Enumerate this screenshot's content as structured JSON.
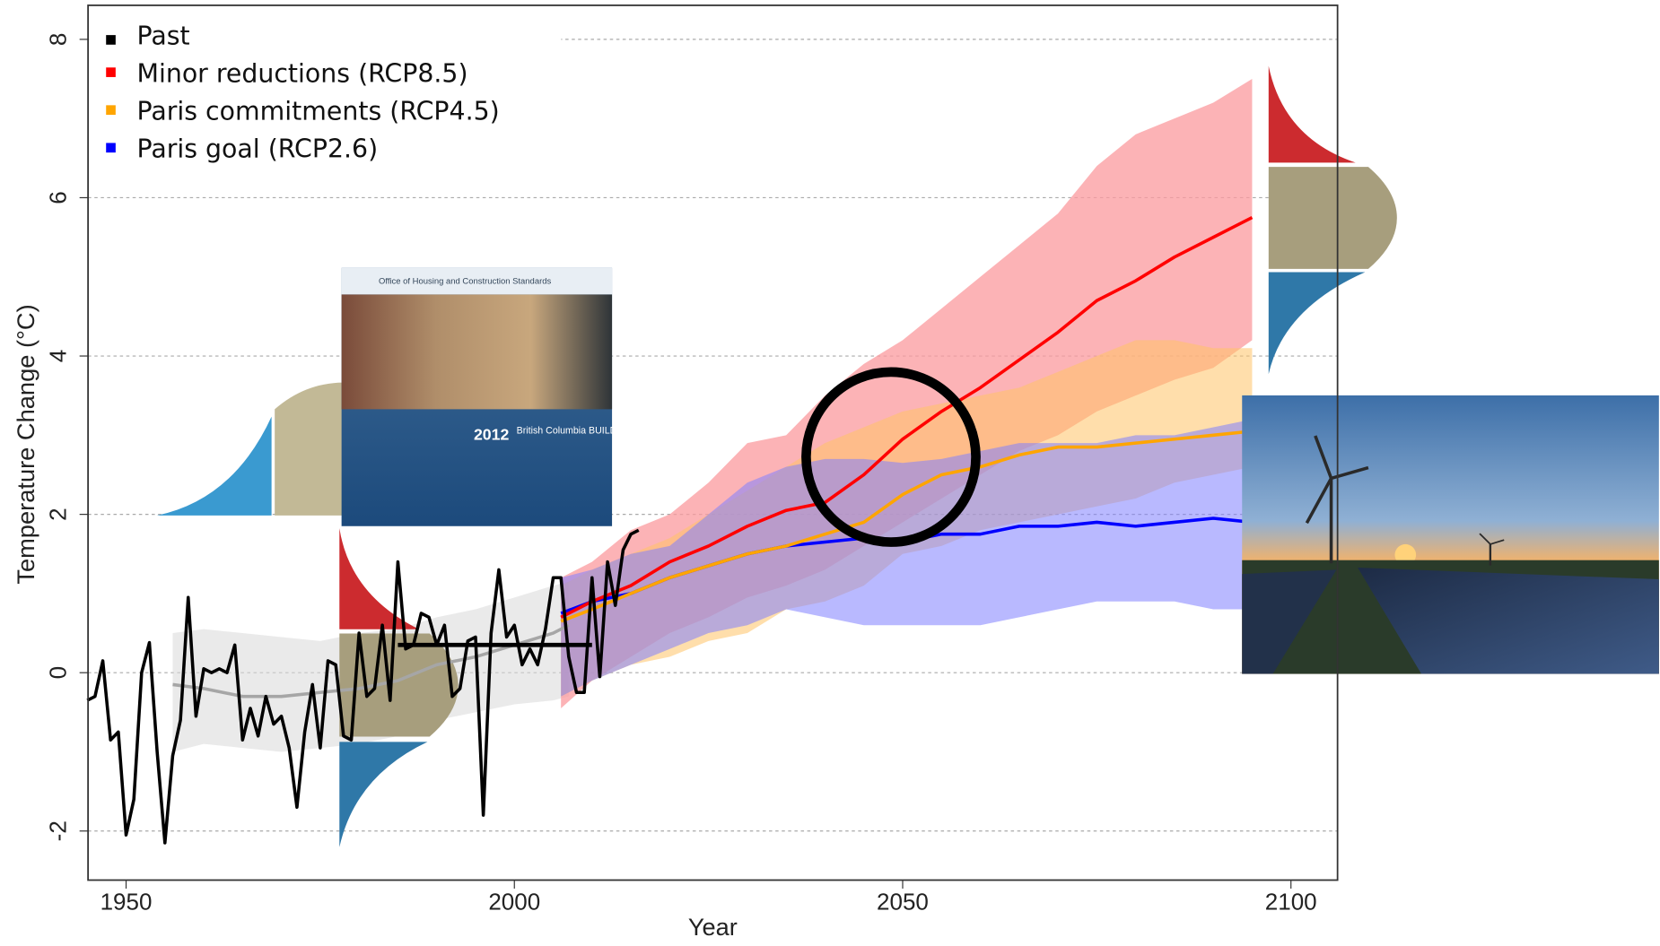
{
  "chart_data": {
    "type": "line",
    "x_label": "Year",
    "y_label": "Temperature Change (°C)",
    "xlim": [
      1945.1,
      2106
    ],
    "ylim": [
      -2.62,
      8.43
    ],
    "xticks": [
      1950,
      2000,
      2050,
      2100
    ],
    "yticks": [
      -2,
      0,
      2,
      4,
      6,
      8
    ],
    "grid": true,
    "legend": "top-left",
    "series": [
      {
        "name": "Past",
        "color": "#000000",
        "x": [
          1945,
          1946,
          1947,
          1948,
          1949,
          1950,
          1951,
          1952,
          1953,
          1954,
          1955,
          1956,
          1957,
          1958,
          1959,
          1960,
          1961,
          1962,
          1963,
          1964,
          1965,
          1966,
          1967,
          1968,
          1969,
          1970,
          1971,
          1972,
          1973,
          1974,
          1975,
          1976,
          1977,
          1978,
          1979,
          1980,
          1981,
          1982,
          1983,
          1984,
          1985,
          1986,
          1987,
          1988,
          1989,
          1990,
          1991,
          1992,
          1993,
          1994,
          1995,
          1996,
          1997,
          1998,
          1999,
          2000,
          2001,
          2002,
          2003,
          2004,
          2005,
          2006,
          2007,
          2008,
          2009,
          2010,
          2011,
          2012,
          2013,
          2014,
          2015,
          2016
        ],
        "values": [
          -0.35,
          -0.3,
          0.15,
          -0.85,
          -0.75,
          -2.05,
          -1.6,
          0,
          0.38,
          -1.0,
          -2.15,
          -1.05,
          -0.6,
          0.95,
          -0.55,
          0.05,
          0,
          0.05,
          0,
          0.35,
          -0.85,
          -0.45,
          -0.8,
          -0.3,
          -0.65,
          -0.55,
          -0.95,
          -1.7,
          -0.75,
          -0.15,
          -0.95,
          0.15,
          0.1,
          -0.8,
          -0.85,
          0.5,
          -0.3,
          -0.2,
          0.6,
          -0.35,
          1.4,
          0.3,
          0.35,
          0.75,
          0.7,
          0.35,
          0.6,
          -0.3,
          -0.2,
          0.4,
          0.45,
          -1.8,
          0.5,
          1.3,
          0.45,
          0.6,
          0.1,
          0.3,
          0.1,
          0.55,
          1.2,
          1.2,
          0.2,
          -0.25,
          -0.25,
          1.2,
          -0.05,
          1.4,
          0.85,
          1.55,
          1.75,
          1.8
        ],
        "baseline_x": [
          1985,
          2010
        ],
        "baseline": [
          0.35,
          0.35
        ],
        "band_color": "#d9d9d9",
        "mean_color": "#a6a6a6",
        "band_x": [
          1956,
          1960,
          1965,
          1970,
          1975,
          1980,
          1985,
          1990,
          1995,
          2000,
          2005,
          2007
        ],
        "band_low": [
          -1.0,
          -0.9,
          -0.95,
          -1.0,
          -0.95,
          -0.9,
          -0.8,
          -0.6,
          -0.5,
          -0.4,
          -0.35,
          -0.3
        ],
        "band_high": [
          0.5,
          0.55,
          0.5,
          0.45,
          0.4,
          0.5,
          0.55,
          0.7,
          0.8,
          0.95,
          1.1,
          1.15
        ],
        "band_mean": [
          -0.15,
          -0.2,
          -0.3,
          -0.3,
          -0.25,
          -0.2,
          -0.1,
          0.1,
          0.2,
          0.35,
          0.5,
          0.6
        ]
      },
      {
        "name": "Minor reductions (RCP8.5)",
        "color": "#ff0000",
        "band_color": "#fb9a9e",
        "x": [
          2006,
          2010,
          2015,
          2020,
          2025,
          2030,
          2035,
          2040,
          2045,
          2050,
          2055,
          2060,
          2065,
          2070,
          2075,
          2080,
          2085,
          2090,
          2095
        ],
        "values": [
          0.7,
          0.9,
          1.1,
          1.4,
          1.6,
          1.85,
          2.05,
          2.15,
          2.5,
          2.95,
          3.3,
          3.6,
          3.95,
          4.3,
          4.7,
          4.95,
          5.25,
          5.5,
          5.75
        ],
        "band_low": [
          -0.45,
          -0.1,
          0.2,
          0.5,
          0.7,
          0.95,
          1.1,
          1.3,
          1.6,
          1.9,
          2.2,
          2.5,
          2.8,
          3.0,
          3.3,
          3.5,
          3.7,
          3.85,
          4.2
        ],
        "band_high": [
          1.2,
          1.4,
          1.8,
          2.0,
          2.4,
          2.9,
          3.0,
          3.5,
          3.9,
          4.2,
          4.6,
          5.0,
          5.4,
          5.8,
          6.4,
          6.8,
          7.0,
          7.2,
          7.5
        ]
      },
      {
        "name": "Paris commitments (RCP4.5)",
        "color": "#ffa500",
        "band_color": "#ffc266",
        "x": [
          2006,
          2010,
          2015,
          2020,
          2025,
          2030,
          2035,
          2040,
          2045,
          2050,
          2055,
          2060,
          2065,
          2070,
          2075,
          2080,
          2085,
          2090,
          2095
        ],
        "values": [
          0.65,
          0.8,
          1.0,
          1.2,
          1.35,
          1.5,
          1.6,
          1.75,
          1.9,
          2.25,
          2.5,
          2.6,
          2.75,
          2.85,
          2.85,
          2.9,
          2.95,
          3.0,
          3.05
        ],
        "band_low": [
          -0.3,
          -0.1,
          0.1,
          0.2,
          0.4,
          0.5,
          0.8,
          0.9,
          1.1,
          1.5,
          1.6,
          1.8,
          1.9,
          2.0,
          2.1,
          2.2,
          2.4,
          2.5,
          2.6
        ],
        "band_high": [
          1.1,
          1.3,
          1.5,
          1.7,
          2.0,
          2.3,
          2.6,
          2.9,
          3.1,
          3.3,
          3.4,
          3.5,
          3.6,
          3.8,
          4.0,
          4.2,
          4.2,
          4.1,
          4.1
        ]
      },
      {
        "name": "Paris goal (RCP2.6)",
        "color": "#0000ff",
        "band_color": "#8080ff",
        "x": [
          2006,
          2010,
          2015,
          2020,
          2025,
          2030,
          2035,
          2040,
          2045,
          2050,
          2055,
          2060,
          2065,
          2070,
          2075,
          2080,
          2085,
          2090,
          2095
        ],
        "values": [
          0.75,
          0.9,
          1.0,
          1.2,
          1.35,
          1.5,
          1.6,
          1.65,
          1.7,
          1.65,
          1.75,
          1.75,
          1.85,
          1.85,
          1.9,
          1.85,
          1.9,
          1.95,
          1.9
        ],
        "band_low": [
          -0.3,
          -0.1,
          0.1,
          0.3,
          0.5,
          0.6,
          0.8,
          0.7,
          0.6,
          0.6,
          0.6,
          0.6,
          0.7,
          0.8,
          0.9,
          0.9,
          0.9,
          0.8,
          0.8
        ],
        "band_high": [
          1.2,
          1.3,
          1.5,
          1.6,
          2.0,
          2.4,
          2.6,
          2.7,
          2.7,
          2.65,
          2.7,
          2.8,
          2.9,
          2.9,
          2.9,
          3.0,
          3.0,
          3.1,
          3.2
        ]
      }
    ],
    "cover": {
      "office": "Office of Housing and Construction Standards",
      "year": "2012",
      "title": "British Columbia BUILDING CODE"
    }
  }
}
